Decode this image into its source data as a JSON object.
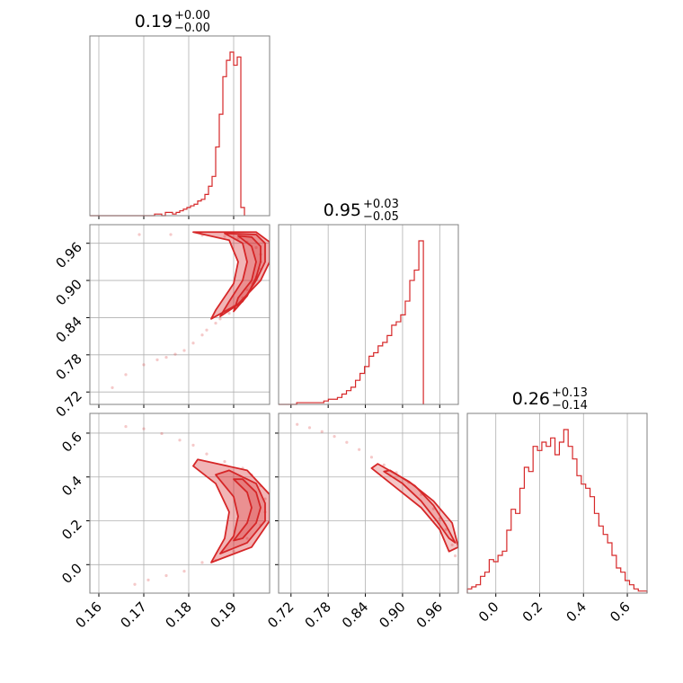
{
  "chart_data": {
    "type": "corner",
    "color": "#d62728",
    "grid": true,
    "parameters": [
      {
        "title": {
          "median": "0.19",
          "plus": "+0.00",
          "minus": "−0.00"
        },
        "range": [
          0.158,
          0.198
        ],
        "ticks": [
          0.16,
          0.17,
          0.18,
          0.19
        ],
        "tick_labels": [
          "0.16",
          "0.17",
          "0.18",
          "0.19"
        ],
        "hist": {
          "edges_start": 0.158,
          "bin_width": 0.0008,
          "counts": [
            0,
            0,
            0,
            0,
            0,
            0,
            0,
            0,
            0,
            0,
            0,
            0,
            0,
            0,
            0,
            0,
            0,
            0,
            1,
            1,
            0,
            2,
            2,
            1,
            2,
            3,
            4,
            5,
            6,
            7,
            9,
            10,
            13,
            18,
            24,
            42,
            62,
            85,
            95,
            100,
            92,
            97,
            5
          ]
        }
      },
      {
        "title": {
          "median": "0.95",
          "plus": "+0.03",
          "minus": "−0.05"
        },
        "range": [
          0.7,
          0.99
        ],
        "ticks": [
          0.72,
          0.78,
          0.84,
          0.9,
          0.96
        ],
        "tick_labels": [
          "0.72",
          "0.78",
          "0.84",
          "0.90",
          "0.96"
        ],
        "hist": {
          "edges_start": 0.7,
          "bin_width": 0.0073,
          "counts": [
            0,
            0,
            0,
            0,
            1,
            1,
            1,
            1,
            1,
            1,
            2,
            3,
            3,
            4,
            6,
            8,
            10,
            14,
            18,
            22,
            28,
            30,
            34,
            36,
            40,
            46,
            48,
            52,
            60,
            72,
            78,
            95
          ]
        }
      },
      {
        "title": {
          "median": "0.26",
          "plus": "+0.13",
          "minus": "−0.14"
        },
        "range": [
          -0.13,
          0.69
        ],
        "ticks": [
          0.0,
          0.2,
          0.4,
          0.6
        ],
        "tick_labels": [
          "0.0",
          "0.2",
          "0.4",
          "0.6"
        ],
        "hist": {
          "edges_start": -0.13,
          "bin_width": 0.02,
          "counts": [
            2,
            3,
            4,
            8,
            10,
            16,
            15,
            18,
            20,
            30,
            40,
            38,
            50,
            60,
            58,
            70,
            68,
            72,
            70,
            74,
            66,
            72,
            78,
            70,
            64,
            56,
            52,
            50,
            46,
            38,
            32,
            28,
            24,
            18,
            12,
            10,
            6,
            4,
            2,
            1,
            1
          ]
        }
      }
    ],
    "samples": {
      "p0_p1": [
        [
          0.163,
          0.727
        ],
        [
          0.166,
          0.748
        ],
        [
          0.17,
          0.764
        ],
        [
          0.173,
          0.772
        ],
        [
          0.175,
          0.776
        ],
        [
          0.177,
          0.781
        ],
        [
          0.179,
          0.787
        ],
        [
          0.181,
          0.799
        ],
        [
          0.183,
          0.812
        ],
        [
          0.184,
          0.82
        ],
        [
          0.186,
          0.831
        ],
        [
          0.187,
          0.838
        ],
        [
          0.189,
          0.847
        ],
        [
          0.19,
          0.858
        ],
        [
          0.192,
          0.872
        ],
        [
          0.193,
          0.885
        ],
        [
          0.194,
          0.896
        ],
        [
          0.195,
          0.906
        ],
        [
          0.196,
          0.918
        ],
        [
          0.196,
          0.93
        ],
        [
          0.196,
          0.942
        ],
        [
          0.195,
          0.953
        ],
        [
          0.193,
          0.962
        ],
        [
          0.191,
          0.968
        ],
        [
          0.188,
          0.971
        ],
        [
          0.183,
          0.973
        ],
        [
          0.176,
          0.974
        ],
        [
          0.169,
          0.974
        ]
      ],
      "p0_p2": [
        [
          0.166,
          0.63
        ],
        [
          0.17,
          0.62
        ],
        [
          0.174,
          0.598
        ],
        [
          0.178,
          0.568
        ],
        [
          0.181,
          0.545
        ],
        [
          0.184,
          0.505
        ],
        [
          0.188,
          0.47
        ],
        [
          0.192,
          0.44
        ],
        [
          0.194,
          0.41
        ],
        [
          0.196,
          0.36
        ],
        [
          0.197,
          0.3
        ],
        [
          0.197,
          0.24
        ],
        [
          0.196,
          0.18
        ],
        [
          0.193,
          0.12
        ],
        [
          0.19,
          0.06
        ],
        [
          0.186,
          0.02
        ],
        [
          0.183,
          0.01
        ],
        [
          0.179,
          -0.03
        ],
        [
          0.175,
          -0.05
        ],
        [
          0.171,
          -0.07
        ],
        [
          0.168,
          -0.09
        ]
      ],
      "p1_p2": [
        [
          0.73,
          0.64
        ],
        [
          0.75,
          0.625
        ],
        [
          0.77,
          0.607
        ],
        [
          0.79,
          0.585
        ],
        [
          0.81,
          0.558
        ],
        [
          0.83,
          0.525
        ],
        [
          0.85,
          0.49
        ],
        [
          0.87,
          0.455
        ],
        [
          0.89,
          0.42
        ],
        [
          0.91,
          0.375
        ],
        [
          0.93,
          0.32
        ],
        [
          0.95,
          0.255
        ],
        [
          0.96,
          0.21
        ],
        [
          0.97,
          0.16
        ],
        [
          0.98,
          0.09
        ],
        [
          0.985,
          0.04
        ]
      ]
    },
    "contours": {
      "p0_p1": [
        [
          [
            0.19,
            0.85
          ],
          [
            0.193,
            0.875
          ],
          [
            0.195,
            0.905
          ],
          [
            0.196,
            0.93
          ],
          [
            0.196,
            0.955
          ],
          [
            0.194,
            0.97
          ],
          [
            0.191,
            0.972
          ],
          [
            0.194,
            0.955
          ],
          [
            0.195,
            0.93
          ],
          [
            0.194,
            0.9
          ],
          [
            0.191,
            0.872
          ]
        ],
        [
          [
            0.187,
            0.842
          ],
          [
            0.192,
            0.866
          ],
          [
            0.195,
            0.9
          ],
          [
            0.197,
            0.93
          ],
          [
            0.197,
            0.96
          ],
          [
            0.195,
            0.974
          ],
          [
            0.188,
            0.976
          ],
          [
            0.192,
            0.96
          ],
          [
            0.193,
            0.93
          ],
          [
            0.192,
            0.9
          ],
          [
            0.189,
            0.866
          ]
        ],
        [
          [
            0.185,
            0.838
          ],
          [
            0.191,
            0.862
          ],
          [
            0.196,
            0.9
          ],
          [
            0.198,
            0.93
          ],
          [
            0.198,
            0.962
          ],
          [
            0.195,
            0.978
          ],
          [
            0.181,
            0.978
          ],
          [
            0.189,
            0.965
          ],
          [
            0.191,
            0.93
          ],
          [
            0.19,
            0.895
          ],
          [
            0.186,
            0.852
          ]
        ]
      ],
      "p0_p2": [
        [
          [
            0.192,
            0.39
          ],
          [
            0.195,
            0.33
          ],
          [
            0.196,
            0.26
          ],
          [
            0.195,
            0.19
          ],
          [
            0.192,
            0.12
          ],
          [
            0.19,
            0.11
          ],
          [
            0.193,
            0.19
          ],
          [
            0.194,
            0.26
          ],
          [
            0.193,
            0.33
          ],
          [
            0.19,
            0.39
          ]
        ],
        [
          [
            0.189,
            0.43
          ],
          [
            0.195,
            0.37
          ],
          [
            0.197,
            0.28
          ],
          [
            0.197,
            0.2
          ],
          [
            0.193,
            0.1
          ],
          [
            0.187,
            0.05
          ],
          [
            0.19,
            0.13
          ],
          [
            0.191,
            0.22
          ],
          [
            0.19,
            0.31
          ],
          [
            0.186,
            0.41
          ]
        ],
        [
          [
            0.182,
            0.48
          ],
          [
            0.193,
            0.43
          ],
          [
            0.198,
            0.32
          ],
          [
            0.198,
            0.2
          ],
          [
            0.194,
            0.08
          ],
          [
            0.185,
            0.01
          ],
          [
            0.188,
            0.12
          ],
          [
            0.189,
            0.24
          ],
          [
            0.186,
            0.37
          ],
          [
            0.181,
            0.45
          ]
        ]
      ],
      "p1_p2": [
        [
          [
            0.88,
            0.43
          ],
          [
            0.92,
            0.36
          ],
          [
            0.95,
            0.27
          ],
          [
            0.97,
            0.18
          ],
          [
            0.985,
            0.1
          ],
          [
            0.975,
            0.12
          ],
          [
            0.955,
            0.2
          ],
          [
            0.93,
            0.29
          ],
          [
            0.9,
            0.37
          ],
          [
            0.87,
            0.425
          ]
        ],
        [
          [
            0.86,
            0.46
          ],
          [
            0.91,
            0.38
          ],
          [
            0.95,
            0.29
          ],
          [
            0.98,
            0.19
          ],
          [
            0.99,
            0.08
          ],
          [
            0.975,
            0.06
          ],
          [
            0.96,
            0.16
          ],
          [
            0.93,
            0.26
          ],
          [
            0.89,
            0.35
          ],
          [
            0.85,
            0.44
          ]
        ]
      ]
    }
  }
}
